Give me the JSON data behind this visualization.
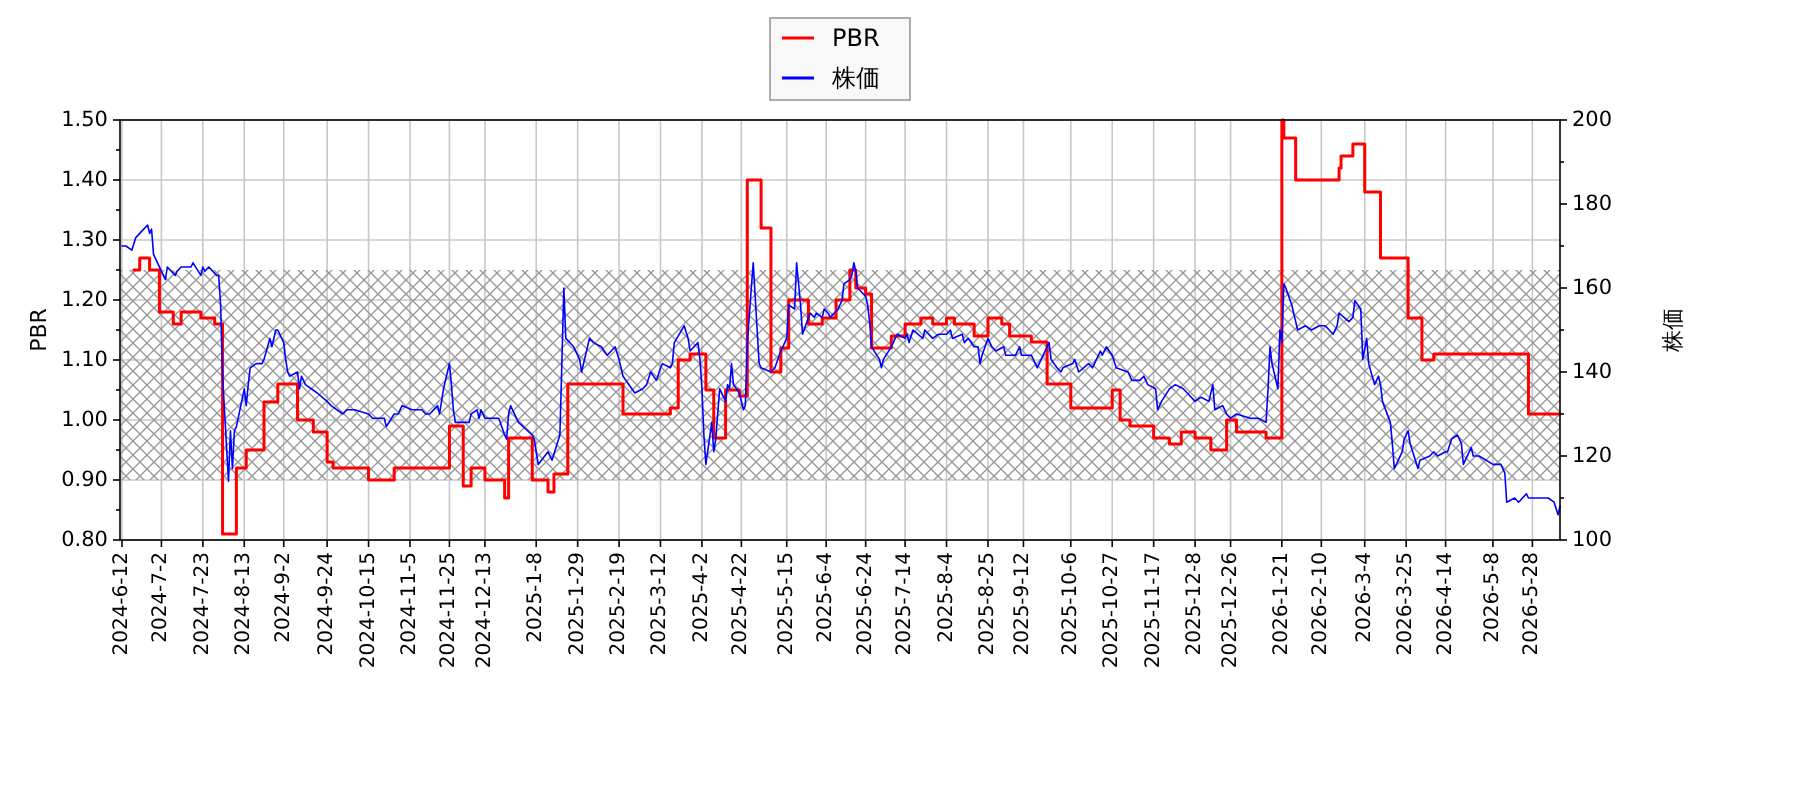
{
  "chart_data": {
    "type": "line",
    "xlim": [
      "2024-06-11",
      "2026-06-11"
    ],
    "xticks": [
      {
        "value": "2024-06-12",
        "label": "2024-6-12"
      },
      {
        "value": "2024-07-02",
        "label": "2024-7-2"
      },
      {
        "value": "2024-07-23",
        "label": "2024-7-23"
      },
      {
        "value": "2024-08-13",
        "label": "2024-8-13"
      },
      {
        "value": "2024-09-02",
        "label": "2024-9-2"
      },
      {
        "value": "2024-09-24",
        "label": "2024-9-24"
      },
      {
        "value": "2024-10-15",
        "label": "2024-10-15"
      },
      {
        "value": "2024-11-05",
        "label": "2024-11-5"
      },
      {
        "value": "2024-11-25",
        "label": "2024-11-25"
      },
      {
        "value": "2024-12-13",
        "label": "2024-12-13"
      },
      {
        "value": "2025-01-08",
        "label": "2025-1-8"
      },
      {
        "value": "2025-01-29",
        "label": "2025-1-29"
      },
      {
        "value": "2025-02-19",
        "label": "2025-2-19"
      },
      {
        "value": "2025-03-12",
        "label": "2025-3-12"
      },
      {
        "value": "2025-04-02",
        "label": "2025-4-2"
      },
      {
        "value": "2025-04-22",
        "label": "2025-4-22"
      },
      {
        "value": "2025-05-15",
        "label": "2025-5-15"
      },
      {
        "value": "2025-06-04",
        "label": "2025-6-4"
      },
      {
        "value": "2025-06-24",
        "label": "2025-6-24"
      },
      {
        "value": "2025-07-14",
        "label": "2025-7-14"
      },
      {
        "value": "2025-08-04",
        "label": "2025-8-4"
      },
      {
        "value": "2025-08-25",
        "label": "2025-8-25"
      },
      {
        "value": "2025-09-12",
        "label": "2025-9-12"
      },
      {
        "value": "2025-10-06",
        "label": "2025-10-6"
      },
      {
        "value": "2025-10-27",
        "label": "2025-10-27"
      },
      {
        "value": "2025-11-17",
        "label": "2025-11-17"
      },
      {
        "value": "2025-12-08",
        "label": "2025-12-8"
      },
      {
        "value": "2025-12-26",
        "label": "2025-12-26"
      },
      {
        "value": "2026-01-21",
        "label": "2026-1-21"
      },
      {
        "value": "2026-02-10",
        "label": "2026-2-10"
      },
      {
        "value": "2026-03-04",
        "label": "2026-3-4"
      },
      {
        "value": "2026-03-25",
        "label": "2026-3-25"
      },
      {
        "value": "2026-04-14",
        "label": "2026-4-14"
      },
      {
        "value": "2026-05-08",
        "label": "2026-5-8"
      },
      {
        "value": "2026-05-28",
        "label": "2026-5-28"
      }
    ],
    "ylim": [
      0.8,
      1.5
    ],
    "yticks": [
      {
        "value": 0.8,
        "label": "0.80"
      },
      {
        "value": 0.85,
        "label": null
      },
      {
        "value": 0.9,
        "label": "0.90"
      },
      {
        "value": 0.95,
        "label": null
      },
      {
        "value": 1.0,
        "label": "1.00"
      },
      {
        "value": 1.05,
        "label": null
      },
      {
        "value": 1.1,
        "label": "1.10"
      },
      {
        "value": 1.15,
        "label": null
      },
      {
        "value": 1.2,
        "label": "1.20"
      },
      {
        "value": 1.25,
        "label": null
      },
      {
        "value": 1.3,
        "label": "1.30"
      },
      {
        "value": 1.35,
        "label": null
      },
      {
        "value": 1.4,
        "label": "1.40"
      },
      {
        "value": 1.45,
        "label": null
      },
      {
        "value": 1.5,
        "label": "1.50"
      }
    ],
    "y2lim": [
      100,
      200
    ],
    "y2ticks": [
      100,
      {
        "value": 110,
        "label": null
      },
      120,
      {
        "value": 130,
        "label": null
      },
      140,
      {
        "value": 150,
        "label": null
      },
      160,
      {
        "value": 170,
        "label": null
      },
      180,
      {
        "value": 190,
        "label": null
      },
      200
    ],
    "ylabel": "PBR",
    "y2label": "株価",
    "grid": true,
    "legend": "top",
    "bands": [
      {
        "axis": "y",
        "from": 0.9,
        "to": 1.25,
        "color": "#999999"
      }
    ],
    "series": [
      {
        "name": "PBR",
        "type": "step",
        "color": "#ff0000",
        "x": [
          "2024-06-18",
          "2024-06-21",
          "2024-06-26",
          "2024-07-01",
          "2024-07-08",
          "2024-07-12",
          "2024-07-22",
          "2024-07-29",
          "2024-08-02",
          "2024-08-09",
          "2024-08-14",
          "2024-08-23",
          "2024-08-30",
          "2024-09-09",
          "2024-09-17",
          "2024-09-24",
          "2024-09-27",
          "2024-10-15",
          "2024-10-28",
          "2024-11-25",
          "2024-12-02",
          "2024-12-06",
          "2024-12-13",
          "2024-12-23",
          "2024-12-25",
          "2025-01-06",
          "2025-01-14",
          "2025-01-17",
          "2025-01-24",
          "2025-02-21",
          "2025-03-17",
          "2025-03-21",
          "2025-03-27",
          "2025-04-04",
          "2025-04-08",
          "2025-04-14",
          "2025-04-21",
          "2025-04-25",
          "2025-05-02",
          "2025-05-07",
          "2025-05-12",
          "2025-05-16",
          "2025-05-26",
          "2025-06-02",
          "2025-06-09",
          "2025-06-16",
          "2025-06-19",
          "2025-06-24",
          "2025-06-27",
          "2025-07-07",
          "2025-07-14",
          "2025-07-22",
          "2025-07-28",
          "2025-08-04",
          "2025-08-08",
          "2025-08-18",
          "2025-08-25",
          "2025-09-01",
          "2025-09-05",
          "2025-09-16",
          "2025-09-24",
          "2025-10-06",
          "2025-10-27",
          "2025-10-31",
          "2025-11-05",
          "2025-11-17",
          "2025-11-25",
          "2025-12-01",
          "2025-12-08",
          "2025-12-16",
          "2025-12-24",
          "2025-12-29",
          "2026-01-13",
          "2026-01-21",
          "2026-01-22",
          "2026-01-28",
          "2026-02-19",
          "2026-02-20",
          "2026-02-26",
          "2026-03-04",
          "2026-03-12",
          "2026-03-26",
          "2026-04-02",
          "2026-04-08",
          "2026-05-26",
          "2026-06-11"
        ],
        "values": [
          1.25,
          1.27,
          1.25,
          1.18,
          1.16,
          1.18,
          1.17,
          1.16,
          0.81,
          0.92,
          0.95,
          1.03,
          1.06,
          1.0,
          0.98,
          0.93,
          0.92,
          0.9,
          0.92,
          0.99,
          0.89,
          0.92,
          0.9,
          0.87,
          0.97,
          0.9,
          0.88,
          0.91,
          1.06,
          1.01,
          1.02,
          1.1,
          1.11,
          1.05,
          0.97,
          1.05,
          1.04,
          1.4,
          1.32,
          1.08,
          1.12,
          1.2,
          1.16,
          1.17,
          1.2,
          1.25,
          1.22,
          1.21,
          1.12,
          1.14,
          1.16,
          1.17,
          1.16,
          1.17,
          1.16,
          1.14,
          1.17,
          1.16,
          1.14,
          1.13,
          1.06,
          1.02,
          1.05,
          1.0,
          0.99,
          0.97,
          0.96,
          0.98,
          0.97,
          0.95,
          1.0,
          0.98,
          0.97,
          1.5,
          1.47,
          1.4,
          1.42,
          1.44,
          1.46,
          1.38,
          1.27,
          1.17,
          1.1,
          1.11,
          1.01,
          1.01
        ]
      },
      {
        "name": "株価",
        "axis": "y2",
        "color": "#0000ff",
        "x": [
          "2024-06-12",
          "2024-06-14",
          "2024-06-17",
          "2024-06-19",
          "2024-06-21",
          "2024-06-25",
          "2024-06-26",
          "2024-06-27",
          "2024-06-28",
          "2024-07-02",
          "2024-07-04",
          "2024-07-05",
          "2024-07-09",
          "2024-07-10",
          "2024-07-12",
          "2024-07-17",
          "2024-07-18",
          "2024-07-22",
          "2024-07-23",
          "2024-07-24",
          "2024-07-26",
          "2024-07-30",
          "2024-07-31",
          "2024-08-01",
          "2024-08-02",
          "2024-08-05",
          "2024-08-06",
          "2024-08-07",
          "2024-08-08",
          "2024-08-09",
          "2024-08-13",
          "2024-08-14",
          "2024-08-15",
          "2024-08-16",
          "2024-08-19",
          "2024-08-22",
          "2024-08-23",
          "2024-08-26",
          "2024-08-27",
          "2024-08-29",
          "2024-08-30",
          "2024-09-02",
          "2024-09-03",
          "2024-09-04",
          "2024-09-05",
          "2024-09-09",
          "2024-09-10",
          "2024-09-11",
          "2024-09-13",
          "2024-09-19",
          "2024-09-24",
          "2024-09-26",
          "2024-10-02",
          "2024-10-04",
          "2024-10-08",
          "2024-10-15",
          "2024-10-17",
          "2024-10-21",
          "2024-10-23",
          "2024-10-24",
          "2024-10-28",
          "2024-10-30",
          "2024-11-01",
          "2024-11-06",
          "2024-11-11",
          "2024-11-13",
          "2024-11-15",
          "2024-11-19",
          "2024-11-20",
          "2024-11-22",
          "2024-11-25",
          "2024-11-26",
          "2024-11-27",
          "2024-11-28",
          "2024-12-02",
          "2024-12-05",
          "2024-12-06",
          "2024-12-09",
          "2024-12-10",
          "2024-12-11",
          "2024-12-13",
          "2024-12-18",
          "2024-12-20",
          "2024-12-23",
          "2024-12-24",
          "2024-12-25",
          "2024-12-26",
          "2024-12-30",
          "2025-01-06",
          "2025-01-07",
          "2025-01-09",
          "2025-01-14",
          "2025-01-16",
          "2025-01-20",
          "2025-01-21",
          "2025-01-22",
          "2025-01-23",
          "2025-01-27",
          "2025-01-30",
          "2025-01-31",
          "2025-02-04",
          "2025-02-06",
          "2025-02-10",
          "2025-02-13",
          "2025-02-17",
          "2025-02-19",
          "2025-02-21",
          "2025-02-27",
          "2025-03-03",
          "2025-03-05",
          "2025-03-07",
          "2025-03-10",
          "2025-03-12",
          "2025-03-13",
          "2025-03-17",
          "2025-03-18",
          "2025-03-19",
          "2025-03-24",
          "2025-03-26",
          "2025-03-27",
          "2025-03-31",
          "2025-04-01",
          "2025-04-02",
          "2025-04-03",
          "2025-04-04",
          "2025-04-07",
          "2025-04-08",
          "2025-04-09",
          "2025-04-11",
          "2025-04-14",
          "2025-04-15",
          "2025-04-16",
          "2025-04-17",
          "2025-04-18",
          "2025-04-21",
          "2025-04-23",
          "2025-04-24",
          "2025-04-25",
          "2025-04-28",
          "2025-04-30",
          "2025-05-01",
          "2025-05-02",
          "2025-05-07",
          "2025-05-09",
          "2025-05-12",
          "2025-05-14",
          "2025-05-15",
          "2025-05-16",
          "2025-05-19",
          "2025-05-20",
          "2025-05-22",
          "2025-05-23",
          "2025-05-26",
          "2025-05-27",
          "2025-05-29",
          "2025-05-30",
          "2025-06-02",
          "2025-06-03",
          "2025-06-05",
          "2025-06-06",
          "2025-06-10",
          "2025-06-12",
          "2025-06-13",
          "2025-06-16",
          "2025-06-17",
          "2025-06-18",
          "2025-06-19",
          "2025-06-20",
          "2025-06-24",
          "2025-06-25",
          "2025-06-26",
          "2025-06-27",
          "2025-07-01",
          "2025-07-02",
          "2025-07-03",
          "2025-07-07",
          "2025-07-08",
          "2025-07-10",
          "2025-07-14",
          "2025-07-15",
          "2025-07-16",
          "2025-07-18",
          "2025-07-23",
          "2025-07-24",
          "2025-07-28",
          "2025-07-31",
          "2025-08-04",
          "2025-08-06",
          "2025-08-07",
          "2025-08-12",
          "2025-08-13",
          "2025-08-15",
          "2025-08-18",
          "2025-08-20",
          "2025-08-21",
          "2025-08-22",
          "2025-08-25",
          "2025-08-27",
          "2025-08-29",
          "2025-09-02",
          "2025-09-03",
          "2025-09-04",
          "2025-09-08",
          "2025-09-10",
          "2025-09-11",
          "2025-09-16",
          "2025-09-18",
          "2025-09-19",
          "2025-09-22",
          "2025-09-25",
          "2025-09-26",
          "2025-09-29",
          "2025-10-01",
          "2025-10-02",
          "2025-10-07",
          "2025-10-08",
          "2025-10-10",
          "2025-10-15",
          "2025-10-17",
          "2025-10-21",
          "2025-10-22",
          "2025-10-24",
          "2025-10-27",
          "2025-10-29",
          "2025-11-04",
          "2025-11-06",
          "2025-11-10",
          "2025-11-12",
          "2025-11-14",
          "2025-11-18",
          "2025-11-19",
          "2025-11-21",
          "2025-11-25",
          "2025-11-28",
          "2025-12-02",
          "2025-12-04",
          "2025-12-08",
          "2025-12-11",
          "2025-12-15",
          "2025-12-17",
          "2025-12-18",
          "2025-12-22",
          "2025-12-24",
          "2025-12-26",
          "2025-12-29",
          "2026-01-05",
          "2026-01-07",
          "2026-01-09",
          "2026-01-13",
          "2026-01-14",
          "2026-01-15",
          "2026-01-16",
          "2026-01-19",
          "2026-01-20",
          "2026-01-21",
          "2026-01-22",
          "2026-01-23",
          "2026-01-26",
          "2026-01-28",
          "2026-01-29",
          "2026-02-02",
          "2026-02-05",
          "2026-02-09",
          "2026-02-12",
          "2026-02-16",
          "2026-02-18",
          "2026-02-19",
          "2026-02-24",
          "2026-02-26",
          "2026-02-27",
          "2026-03-02",
          "2026-03-03",
          "2026-03-05",
          "2026-03-06",
          "2026-03-09",
          "2026-03-11",
          "2026-03-12",
          "2026-03-13",
          "2026-03-17",
          "2026-03-18",
          "2026-03-19",
          "2026-03-23",
          "2026-03-24",
          "2026-03-25",
          "2026-03-26",
          "2026-03-27",
          "2026-03-31",
          "2026-04-01",
          "2026-04-06",
          "2026-04-08",
          "2026-04-10",
          "2026-04-14",
          "2026-04-15",
          "2026-04-17",
          "2026-04-20",
          "2026-04-22",
          "2026-04-23",
          "2026-04-27",
          "2026-04-28",
          "2026-05-01",
          "2026-05-08",
          "2026-05-12",
          "2026-05-14",
          "2026-05-15",
          "2026-05-19",
          "2026-05-21",
          "2026-05-25",
          "2026-05-26",
          "2026-05-28",
          "2026-06-01",
          "2026-06-03",
          "2026-06-05",
          "2026-06-08",
          "2026-06-10",
          "2026-06-11"
        ],
        "values": [
          170,
          170,
          169,
          172,
          173,
          175,
          173,
          174,
          168,
          164,
          162,
          165,
          163,
          164,
          165,
          165,
          166,
          163,
          165,
          164,
          165,
          163,
          163,
          156,
          139,
          114,
          126,
          117,
          126,
          127,
          136,
          132,
          137,
          141,
          142,
          142,
          143,
          148,
          146,
          150,
          150,
          147,
          143,
          140,
          139,
          140,
          136,
          139,
          137,
          135,
          133,
          132,
          130,
          131,
          131,
          130,
          129,
          129,
          129,
          127,
          130,
          130,
          132,
          131,
          131,
          130,
          130,
          132,
          130,
          136,
          142,
          137,
          131,
          128,
          128,
          128,
          130,
          131,
          129,
          131,
          129,
          129,
          129,
          125,
          124,
          130,
          132,
          128,
          125,
          124,
          118,
          121,
          119,
          125,
          142,
          160,
          148,
          146,
          143,
          140,
          148,
          147,
          146,
          144,
          146,
          143,
          139,
          135,
          136,
          137,
          140,
          138,
          141,
          142,
          141,
          142,
          147,
          151,
          148,
          145,
          147,
          143,
          136,
          125,
          118,
          128,
          121,
          124,
          136,
          133,
          137,
          136,
          142,
          137,
          135,
          131,
          132,
          147,
          166,
          150,
          142,
          141,
          140,
          141,
          145,
          147,
          148,
          156,
          155,
          166,
          156,
          149,
          153,
          154,
          153,
          154,
          153,
          155,
          154,
          153,
          155,
          157,
          161,
          162,
          163,
          166,
          164,
          160,
          158,
          156,
          152,
          146,
          143,
          141,
          143,
          146,
          147,
          149,
          148,
          149,
          147,
          150,
          148,
          150,
          148,
          149,
          149,
          150,
          148,
          149,
          147,
          148,
          146,
          146,
          142,
          144,
          148,
          146,
          145,
          146,
          144,
          144,
          144,
          146,
          144,
          144,
          142,
          141,
          144,
          147,
          143,
          141,
          140,
          141,
          142,
          143,
          140,
          142,
          141,
          145,
          144,
          146,
          144,
          141,
          140,
          138,
          138,
          139,
          137,
          136,
          131,
          133,
          136,
          137,
          136,
          135,
          133,
          134,
          133,
          137,
          131,
          132,
          130,
          129,
          130,
          129,
          129,
          129,
          128,
          136,
          146,
          142,
          136,
          150,
          147,
          161,
          160,
          156,
          152,
          150,
          151,
          150,
          151,
          151,
          149,
          151,
          154,
          152,
          153,
          157,
          155,
          143,
          148,
          142,
          137,
          139,
          137,
          133,
          128,
          123,
          117,
          121,
          124,
          125,
          126,
          123,
          117,
          119,
          120,
          121,
          120,
          121,
          121,
          124,
          125,
          123,
          118,
          122,
          120,
          120,
          118,
          118,
          116,
          109,
          110,
          109,
          111,
          110,
          110,
          110,
          110,
          110,
          109,
          106,
          108
        ]
      }
    ]
  }
}
